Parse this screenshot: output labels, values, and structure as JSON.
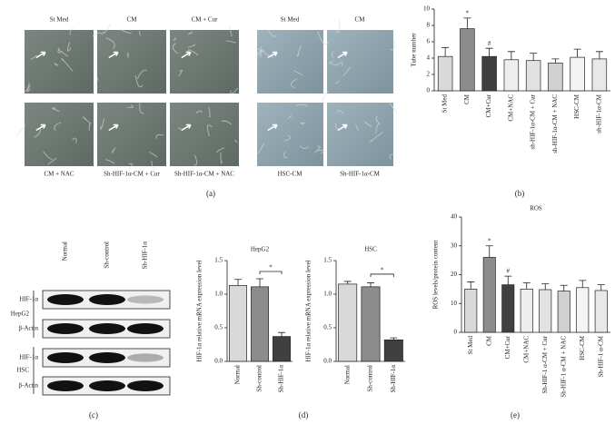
{
  "figure": {
    "panel_labels": [
      "(a)",
      "(b)",
      "(c)",
      "(d)",
      "(e)"
    ]
  },
  "images": {
    "top_labels": [
      "St Med",
      "CM",
      "CM + Cur",
      "St Med",
      "CM"
    ],
    "bottom_labels": [
      "CM + NAC",
      "Sh-HIF-1α-CM + Cur",
      "Sh-HIF-1α-CM + NAC",
      "HSC-CM",
      "Sh-HIF-1α-CM"
    ]
  },
  "blot": {
    "columns": [
      "Normal",
      "Sh-control",
      "Sh-HIF-1α"
    ],
    "rows": [
      "HIF-1α",
      "β-Actin",
      "HIF-1α",
      "β-Actin"
    ],
    "groups": [
      "HepG2",
      "HSC"
    ]
  },
  "chart_data": [
    {
      "type": "bar",
      "y_label": "Tube number",
      "categories": [
        "St Med",
        "CM",
        "CM+Cur",
        "CM+NAC",
        "sh-HIF-1α-CM + Cur",
        "sh-HIF-1α-CM + NAC",
        "HSC-CM",
        "sh-HIF-1α-CM"
      ],
      "values": [
        4.2,
        7.6,
        4.2,
        3.8,
        3.7,
        3.4,
        4.1,
        3.9
      ],
      "errors": [
        1.1,
        1.3,
        1.0,
        1.0,
        0.9,
        0.5,
        1.0,
        0.9
      ],
      "colors": [
        "#d9d9d9",
        "#8c8c8c",
        "#404040",
        "#eeeeee",
        "#e2e2e2",
        "#d0d0d0",
        "#f4f4f4",
        "#e8e8e8"
      ],
      "ylim": [
        0,
        10
      ],
      "yticks": [
        0,
        2,
        4,
        6,
        8,
        10
      ],
      "annotations": [
        "*",
        "#"
      ]
    },
    {
      "type": "bar",
      "title": "HepG2",
      "y_label": "HIF-1α relative mRNA expression level",
      "categories": [
        "Normal",
        "Sh-control",
        "Sh-HIF-1α"
      ],
      "values": [
        1.13,
        1.11,
        0.37
      ],
      "errors": [
        0.09,
        0.12,
        0.06
      ],
      "colors": [
        "#d9d9d9",
        "#8c8c8c",
        "#404040"
      ],
      "ylim": [
        0,
        1.5
      ],
      "yticks": [
        {
          "value": 0,
          "label": "0.0"
        },
        {
          "value": 0.5,
          "label": "0.5"
        },
        {
          "value": 1,
          "label": "1.0"
        },
        {
          "value": 1.5,
          "label": "1.5"
        }
      ],
      "annotations": [
        "*"
      ]
    },
    {
      "type": "bar",
      "title": "HSC",
      "y_label": "HIF-1α relative mRNA expression level",
      "categories": [
        "Normal",
        "Sh-control",
        "Sh-HIF-1α"
      ],
      "values": [
        1.15,
        1.11,
        0.32
      ],
      "errors": [
        0.04,
        0.06,
        0.03
      ],
      "colors": [
        "#d9d9d9",
        "#8c8c8c",
        "#404040"
      ],
      "ylim": [
        0,
        1.5
      ],
      "yticks": [
        {
          "value": 0,
          "label": "0.0"
        },
        {
          "value": 0.5,
          "label": "0.5"
        },
        {
          "value": 1,
          "label": "1.0"
        },
        {
          "value": 1.5,
          "label": "1.5"
        }
      ],
      "annotations": [
        "*"
      ]
    },
    {
      "type": "bar",
      "title": "ROS",
      "y_label": "ROS levels/protein content",
      "categories": [
        "St Med",
        "CM",
        "CM+Cur",
        "CM+NAC",
        "Sh-HIF-1 α-CM + Cur",
        "Sh-HIF-1 α-CM + NAC",
        "HSC-CM",
        "Sh-HIF-1 α-CM"
      ],
      "values": [
        15,
        26,
        16.5,
        15,
        14.8,
        14.3,
        15.5,
        14.5
      ],
      "errors": [
        2.5,
        4,
        3,
        2.2,
        2,
        2,
        2.5,
        2
      ],
      "colors": [
        "#d9d9d9",
        "#8c8c8c",
        "#404040",
        "#eeeeee",
        "#e2e2e2",
        "#d0d0d0",
        "#f4f4f4",
        "#e8e8e8"
      ],
      "ylim": [
        0,
        40
      ],
      "yticks": [
        0,
        10,
        20,
        30,
        40
      ],
      "annotations": [
        "*",
        "#"
      ]
    }
  ]
}
